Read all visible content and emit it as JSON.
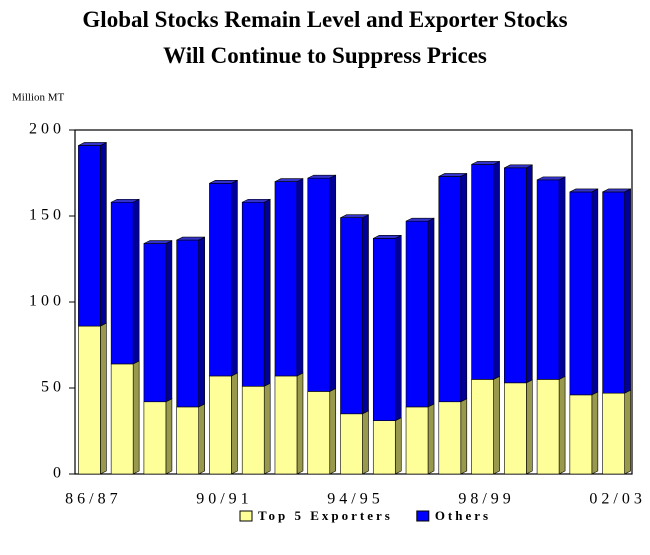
{
  "chart_data": {
    "type": "stacked_bar",
    "title": "Global Stocks Remain Level and Exporter Stocks Will Continue to Suppress Prices",
    "y_label": "Million MT",
    "categories": [
      "86/87",
      null,
      null,
      null,
      "90/91",
      null,
      null,
      null,
      "94/95",
      null,
      null,
      null,
      "98/99",
      null,
      null,
      null,
      "02/03"
    ],
    "series": [
      {
        "name": "Top 5 Exporters",
        "color": "#ffff99",
        "values": [
          86,
          64,
          42,
          39,
          57,
          51,
          57,
          48,
          35,
          31,
          39,
          42,
          55,
          53,
          55,
          46,
          47
        ]
      },
      {
        "name": "Others",
        "color": "#0000ff",
        "values": [
          105,
          94,
          92,
          97,
          112,
          107,
          113,
          124,
          114,
          106,
          108,
          131,
          125,
          125,
          116,
          118,
          117
        ]
      }
    ],
    "ylim": [
      0,
      200
    ],
    "yticks": [
      0,
      50,
      100,
      150,
      200
    ],
    "legend": "bottom"
  }
}
